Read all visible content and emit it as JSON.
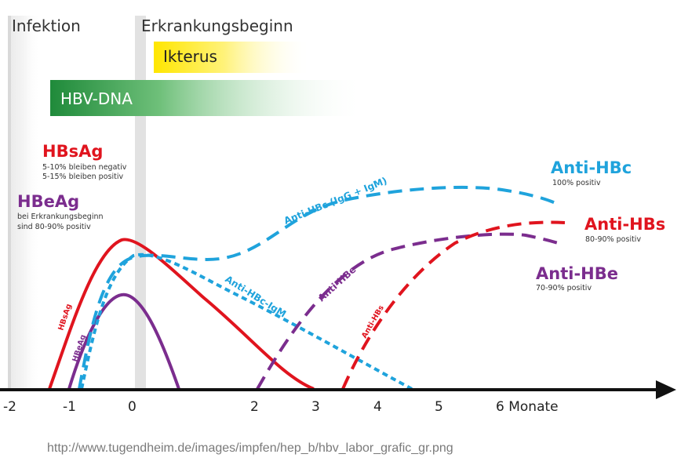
{
  "phases": {
    "infektion": "Infektion",
    "erkrankungsbeginn": "Erkrankungsbeginn"
  },
  "bars": {
    "ikterus": "Ikterus",
    "hbv_dna": "HBV-DNA"
  },
  "markers": {
    "hbsag": {
      "title": "HBsAg",
      "note1": "5-10% bleiben negativ",
      "note2": "5-15% bleiben positiv",
      "curve_label": "HBsAg",
      "color": "#e0141e"
    },
    "hbeag": {
      "title": "HBeAg",
      "note1": "bei Erkrankungsbeginn",
      "note2": "sind 80-90% positiv",
      "curve_label": "HBeAg",
      "color": "#7b2d8e"
    },
    "anti_hbc": {
      "title": "Anti-HBc",
      "note": "100% positiv",
      "curve_label": "Anti-HBc (IgG + IgM)",
      "color": "#1fa3dc"
    },
    "anti_hbc_igm": {
      "curve_label": "Anti-HBc-IgM",
      "color": "#1fa3dc"
    },
    "anti_hbs": {
      "title": "Anti-HBs",
      "note": "80-90% positiv",
      "curve_label": "Anti-HBs",
      "color": "#e0141e"
    },
    "anti_hbe": {
      "title": "Anti-HBe",
      "note": "70-90% positiv",
      "curve_label": "Anti-HBe",
      "color": "#7b2d8e"
    }
  },
  "axis": {
    "ticks": [
      "-2",
      "-1",
      "0",
      "2",
      "3",
      "4",
      "5",
      "6 Monate"
    ]
  },
  "source_url": "http://www.tugendheim.de/images/impfen/hep_b/hbv_labor_grafic_gr.png"
}
